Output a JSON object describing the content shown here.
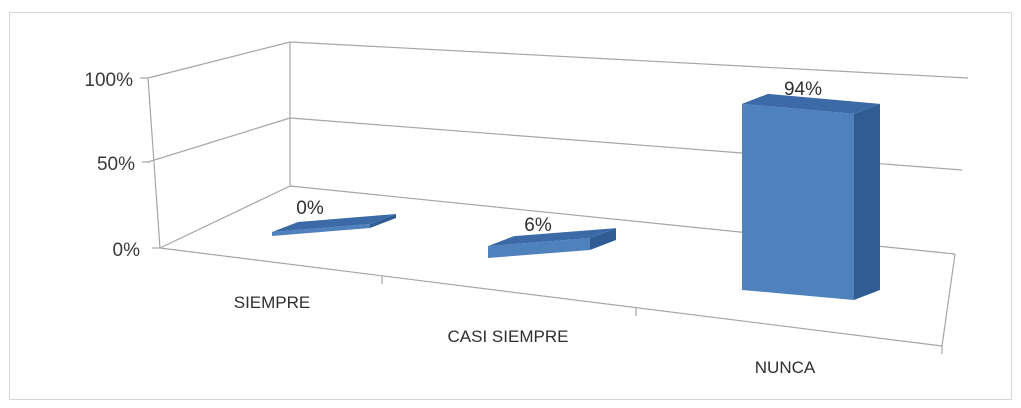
{
  "chart_data": {
    "type": "bar",
    "categories": [
      "SIEMPRE",
      "CASI SIEMPRE",
      "NUNCA"
    ],
    "values": [
      0,
      6,
      94
    ],
    "data_labels": [
      "0%",
      "6%",
      "94%"
    ],
    "y_ticks": [
      "0%",
      "50%",
      "100%"
    ],
    "ylim": [
      0,
      100
    ],
    "grid": true,
    "style": "3d-column",
    "colors": {
      "front": "#4f81bd",
      "top": "#3b6aa6",
      "side": "#2f5c93"
    }
  }
}
